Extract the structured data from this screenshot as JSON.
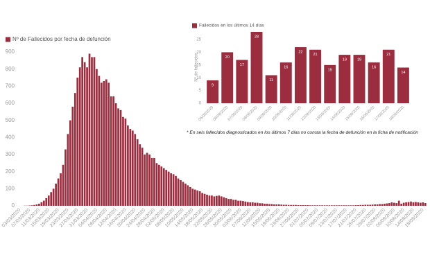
{
  "chart_data": [
    {
      "type": "bar",
      "categories": [
        "03/03/2020",
        null,
        null,
        null,
        "07/03/2020",
        null,
        null,
        null,
        "11/03/2020",
        null,
        null,
        null,
        "15/03/2020",
        null,
        null,
        null,
        "19/03/2020",
        null,
        null,
        null,
        "23/03/2020",
        null,
        null,
        null,
        "27/03/2020",
        null,
        null,
        null,
        "31/03/2020",
        null,
        null,
        null,
        "04/04/2020",
        null,
        null,
        null,
        "08/04/2020",
        null,
        null,
        null,
        "12/04/2020",
        null,
        null,
        null,
        "16/04/2020",
        null,
        null,
        null,
        "20/04/2020",
        null,
        null,
        null,
        "24/04/2020",
        null,
        null,
        null,
        "28/04/2020",
        null,
        null,
        null,
        "02/05/2020",
        null,
        null,
        null,
        "06/05/2020",
        null,
        null,
        null,
        "10/05/2020",
        null,
        null,
        null,
        "14/05/2020",
        null,
        null,
        null,
        "18/05/2020",
        null,
        null,
        null,
        "22/05/2020",
        null,
        null,
        null,
        "26/05/2020",
        null,
        null,
        null,
        "30/05/2020",
        null,
        null,
        null,
        "03/06/2020",
        null,
        null,
        null,
        "07/06/2020",
        null,
        null,
        null,
        "11/06/2020",
        null,
        null,
        null,
        "15/06/2020",
        null,
        null,
        null,
        "19/06/2020",
        null,
        null,
        null,
        "23/06/2020",
        null,
        null,
        null,
        "27/06/2020",
        null,
        null,
        null,
        "01/07/2020",
        null,
        null,
        null,
        "05/07/2020",
        null,
        null,
        null,
        "09/07/2020",
        null,
        null,
        null,
        "13/07/2020",
        null,
        null,
        null,
        "17/07/2020",
        null,
        null,
        null,
        "21/07/2020",
        null,
        null,
        null,
        "25/07/2020",
        null,
        null,
        null,
        "29/07/2020",
        null,
        null,
        null,
        "02/08/2020",
        null,
        null,
        null,
        "06/08/2020",
        null,
        null,
        null,
        "10/08/2020",
        null,
        null,
        null,
        "14/08/2020",
        null,
        null,
        null,
        "18/08/2020",
        null
      ],
      "series": [
        {
          "name": "Nº de Fallecidos por fecha de defunción",
          "color": "#9b2d3f",
          "values": [
            0,
            0,
            1,
            1,
            2,
            3,
            5,
            8,
            12,
            20,
            30,
            45,
            60,
            80,
            100,
            130,
            160,
            190,
            240,
            330,
            420,
            500,
            580,
            660,
            750,
            810,
            870,
            840,
            810,
            890,
            870,
            870,
            800,
            760,
            720,
            730,
            740,
            720,
            640,
            640,
            600,
            570,
            560,
            520,
            510,
            470,
            450,
            440,
            420,
            390,
            360,
            340,
            300,
            310,
            300,
            280,
            280,
            250,
            240,
            230,
            220,
            210,
            200,
            190,
            185,
            175,
            160,
            150,
            140,
            130,
            120,
            110,
            100,
            95,
            90,
            85,
            75,
            70,
            65,
            60,
            60,
            55,
            58,
            60,
            55,
            50,
            45,
            40,
            40,
            35,
            35,
            30,
            30,
            28,
            25,
            22,
            20,
            20,
            18,
            18,
            15,
            15,
            12,
            12,
            10,
            10,
            8,
            8,
            8,
            7,
            6,
            6,
            5,
            5,
            5,
            5,
            4,
            4,
            4,
            4,
            4,
            3,
            3,
            3,
            3,
            3,
            3,
            3,
            3,
            3,
            3,
            3,
            3,
            3,
            3,
            3,
            3,
            3,
            3,
            3,
            4,
            4,
            5,
            5,
            6,
            6,
            6,
            7,
            8,
            8,
            10,
            10,
            12,
            14,
            16,
            20,
            18,
            16,
            30,
            12,
            18,
            20,
            22,
            25,
            20,
            22,
            20,
            18,
            20,
            16
          ]
        }
      ],
      "ylim": [
        0,
        900
      ],
      "yticks": [
        0,
        100,
        200,
        300,
        400,
        500,
        600,
        700,
        800,
        900
      ]
    },
    {
      "type": "bar",
      "y_label": "Nº de fallecidos",
      "categories": [
        "05/08/2020",
        "06/08/2020",
        "07/08/2020",
        "08/08/2020",
        "09/08/2020",
        "10/08/2020",
        "11/08/2020",
        "12/08/2020",
        "13/08/2020",
        "14/08/2020",
        "15/08/2020",
        "16/08/2020",
        "17/08/2020",
        "18/08/2020"
      ],
      "series": [
        {
          "name": "Fallecidos en los últimos 14 días",
          "color": "#9b2d3f",
          "values": [
            9,
            20,
            17,
            28,
            11,
            16,
            22,
            21,
            15,
            19,
            19,
            16,
            21,
            14
          ]
        }
      ],
      "ylim": [
        0,
        28
      ],
      "yticks": [
        0,
        5,
        10,
        15,
        20,
        25
      ]
    }
  ],
  "note": "* En seis fallecidos diagnosticados en los últimos 7 días no consta la fecha de defunción en la ficha de notificación"
}
